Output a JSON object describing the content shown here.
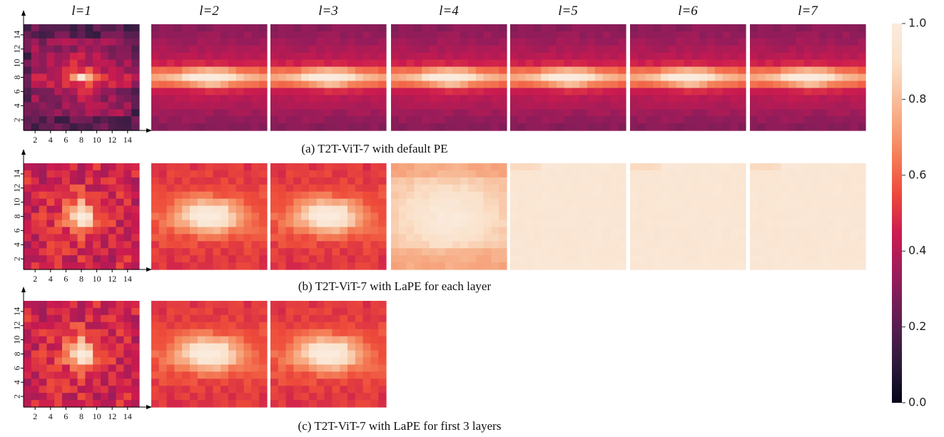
{
  "chart_data": {
    "type": "heatmap",
    "description_grid": "15x15 positional-embedding cosine similarity maps of the center patch, per layer",
    "layer_labels": [
      "l=1",
      "l=2",
      "l=3",
      "l=4",
      "l=5",
      "l=6",
      "l=7"
    ],
    "rows": [
      {
        "caption": "(a) T2T-ViT-7 with default PE",
        "layers": [
          1,
          2,
          3,
          4,
          5,
          6,
          7
        ],
        "pattern": [
          "cross",
          "band",
          "band",
          "band",
          "band",
          "band",
          "band"
        ]
      },
      {
        "caption": "(b) T2T-ViT-7 with LaPE for each layer",
        "layers": [
          1,
          2,
          3,
          4,
          5,
          6,
          7
        ],
        "pattern": [
          "blob",
          "wide",
          "wide",
          "near-uniform",
          "uniform",
          "uniform",
          "uniform"
        ]
      },
      {
        "caption": "(c) T2T-ViT-7 with LaPE for first 3 layers",
        "layers": [
          1,
          2,
          3
        ],
        "pattern": [
          "blob",
          "wide",
          "wide"
        ]
      }
    ],
    "x_ticks": [
      "2",
      "4",
      "6",
      "8",
      "10",
      "12",
      "14"
    ],
    "y_ticks": [
      "2",
      "4",
      "6",
      "8",
      "10",
      "12",
      "14"
    ],
    "colorbar": {
      "min": 0.0,
      "max": 1.0,
      "ticks": [
        "0.0",
        "0.2",
        "0.4",
        "0.6",
        "0.8",
        "1.0"
      ],
      "colormap": "rocket",
      "colors": [
        "#03051a",
        "#2f1c3e",
        "#611f53",
        "#971c5b",
        "#cb1b4f",
        "#ee4b3a",
        "#f5875c",
        "#f7b590",
        "#fae0c8",
        "#faebdd"
      ]
    }
  }
}
